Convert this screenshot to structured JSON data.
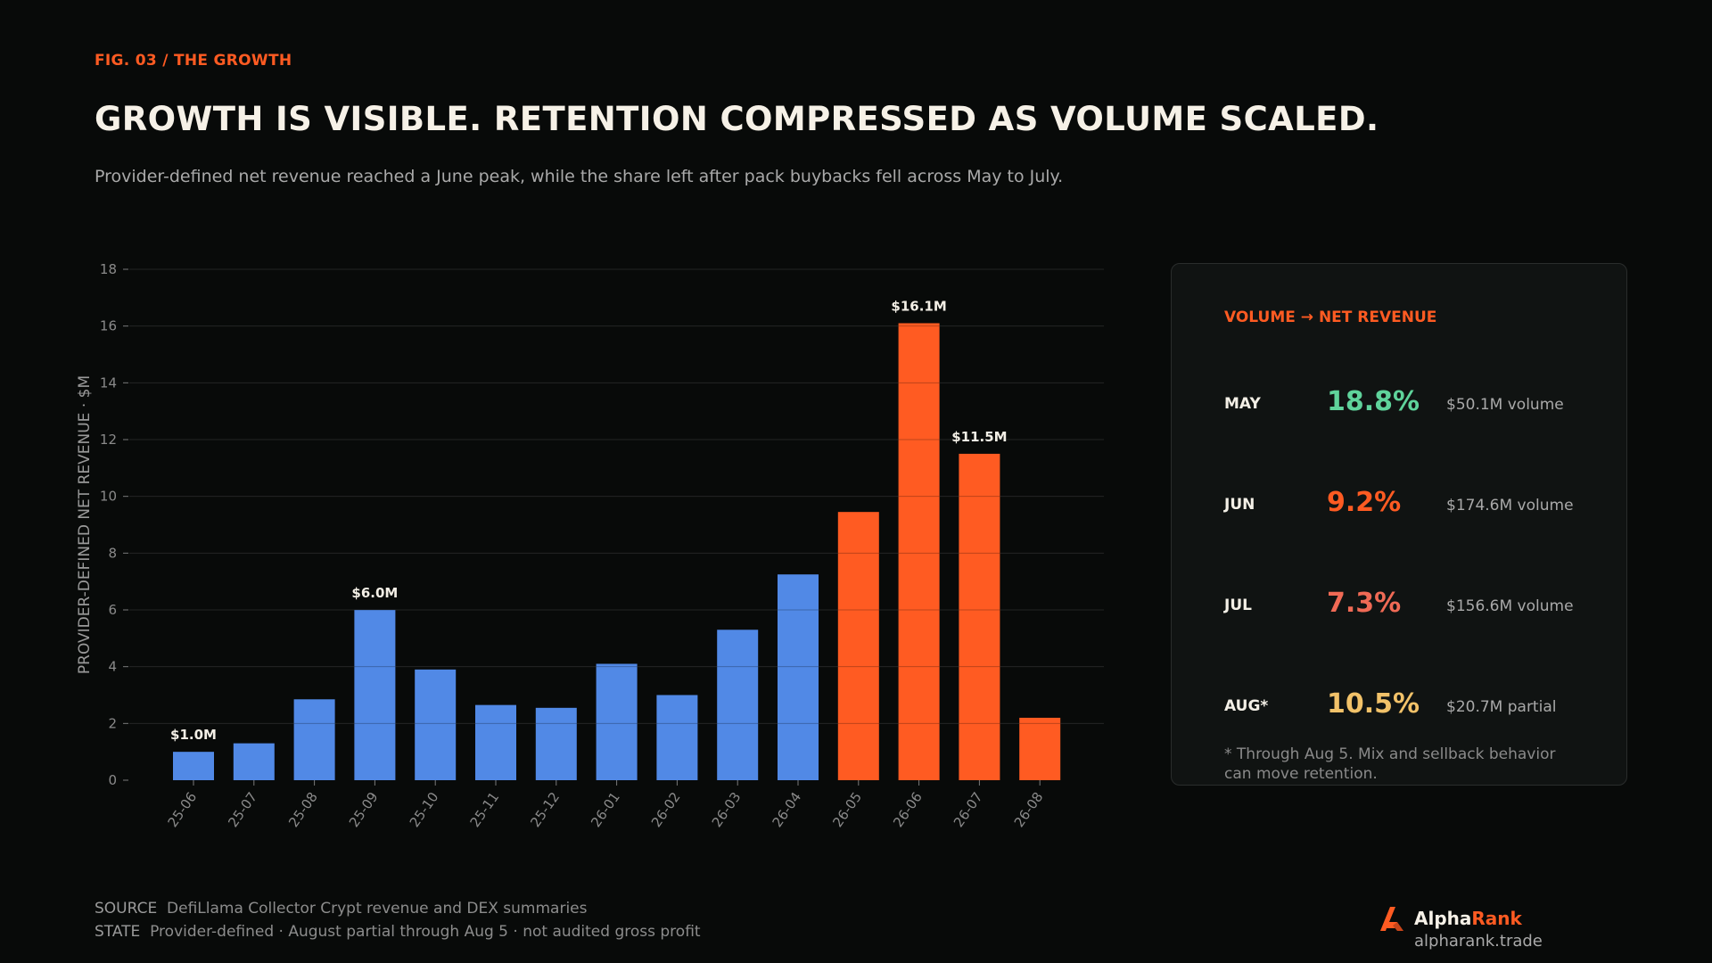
{
  "header": {
    "eyebrow": "FIG. 03 / THE GROWTH",
    "title": "GROWTH IS VISIBLE. RETENTION COMPRESSED AS VOLUME SCALED.",
    "subtitle": "Provider-defined net revenue reached a June peak, while the share left after pack buybacks fell across May to July."
  },
  "chart_data": {
    "type": "bar",
    "title": "",
    "xlabel": "",
    "ylabel": "PROVIDER-DEFINED NET REVENUE · $M",
    "ylim": [
      0,
      18
    ],
    "yticks": [
      0,
      2,
      4,
      6,
      8,
      10,
      12,
      14,
      16,
      18
    ],
    "grid": true,
    "categories": [
      "25-06",
      "25-07",
      "25-08",
      "25-09",
      "25-10",
      "25-11",
      "25-12",
      "26-01",
      "26-02",
      "26-03",
      "26-04",
      "26-05",
      "26-06",
      "26-07",
      "26-08"
    ],
    "values": [
      1.0,
      1.3,
      2.85,
      6.0,
      3.9,
      2.65,
      2.55,
      4.1,
      3.0,
      5.3,
      7.25,
      9.45,
      16.1,
      11.5,
      2.2
    ],
    "highlight": [
      "normal",
      "normal",
      "normal",
      "normal",
      "normal",
      "normal",
      "normal",
      "normal",
      "normal",
      "normal",
      "normal",
      "accent",
      "accent",
      "accent",
      "accent"
    ],
    "data_labels": [
      {
        "index": 0,
        "text": "$1.0M"
      },
      {
        "index": 3,
        "text": "$6.0M"
      },
      {
        "index": 12,
        "text": "$16.1M"
      },
      {
        "index": 13,
        "text": "$11.5M"
      }
    ],
    "colors": {
      "normal": "#5189e6",
      "accent": "#ff5b22"
    }
  },
  "panel": {
    "title": "VOLUME → NET REVENUE",
    "rows": [
      {
        "month": "MAY",
        "pct": "18.8%",
        "volume": "$50.1M volume",
        "color": "#5fd39b"
      },
      {
        "month": "JUN",
        "pct": "9.2%",
        "volume": "$174.6M volume",
        "color": "#ff5b22"
      },
      {
        "month": "JUL",
        "pct": "7.3%",
        "volume": "$156.6M volume",
        "color": "#f06a55"
      },
      {
        "month": "AUG*",
        "pct": "10.5%",
        "volume": "$20.7M partial",
        "color": "#f2c269"
      }
    ],
    "note": "* Through Aug 5. Mix and sellback behavior can move retention."
  },
  "footer": {
    "source_label": "SOURCE",
    "source_text": "DefiLlama Collector Crypt revenue and DEX summaries",
    "state_label": "STATE",
    "state_text": "Provider-defined · August partial through Aug 5 · not audited gross profit"
  },
  "brand": {
    "name_part1": "Alpha",
    "name_part2": "Rank",
    "url": "alpharank.trade",
    "icon": "alpharank-logo-icon",
    "accent": "#ff5b22"
  }
}
